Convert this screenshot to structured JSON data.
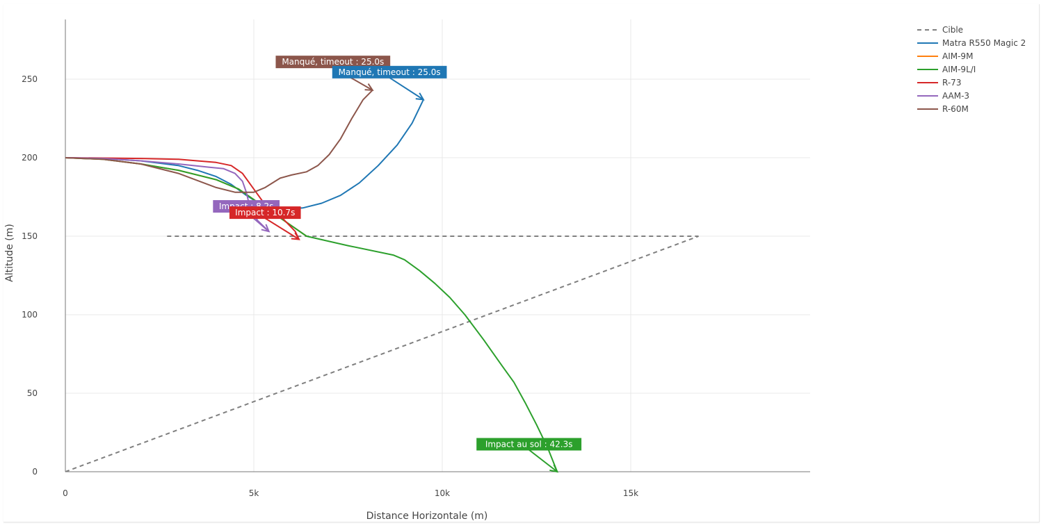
{
  "chart_data": {
    "type": "line",
    "xlabel": "Distance Horizontale (m)",
    "ylabel": "Altitude (m)",
    "xlim": [
      -1500,
      20000
    ],
    "ylim": [
      -5,
      290
    ],
    "x_ticks": [
      {
        "value": 0,
        "label": "0"
      },
      {
        "value": 5000,
        "label": "5k"
      },
      {
        "value": 10000,
        "label": "10k"
      },
      {
        "value": 15000,
        "label": "15k"
      }
    ],
    "y_ticks": [
      {
        "value": 0,
        "label": "0"
      },
      {
        "value": 50,
        "label": "50"
      },
      {
        "value": 100,
        "label": "100"
      },
      {
        "value": 150,
        "label": "150"
      },
      {
        "value": 200,
        "label": "200"
      },
      {
        "value": 250,
        "label": "250"
      }
    ],
    "grid": true,
    "legend_position": "top-right",
    "series": [
      {
        "name": "Cible",
        "color": "#7f7f7f",
        "dash": true,
        "segments": [
          [
            [
              0,
              0
            ],
            [
              16800,
              150
            ]
          ],
          [
            [
              2700,
              150
            ],
            [
              16800,
              150
            ]
          ]
        ]
      },
      {
        "name": "Matra R550 Magic 2",
        "color": "#1f77b4",
        "dash": false,
        "x": [
          0,
          1000,
          2000,
          3000,
          3500,
          4000,
          4400,
          4800,
          5200,
          5700,
          6300,
          6800,
          7300,
          7800,
          8300,
          8800,
          9200,
          9500
        ],
        "y": [
          200,
          199.5,
          198,
          195,
          192,
          188,
          183,
          176,
          170,
          167,
          168,
          171,
          176,
          184,
          195,
          208,
          222,
          237
        ]
      },
      {
        "name": "AIM-9M",
        "color": "#ff7f0e",
        "dash": false,
        "x": [
          0,
          1000,
          2000,
          3000,
          4000,
          4600,
          5200,
          5800,
          6400
        ],
        "y": [
          200,
          199,
          196,
          192,
          186,
          180,
          170,
          160,
          150
        ]
      },
      {
        "name": "AIM-9L/I",
        "color": "#2ca02c",
        "dash": false,
        "x": [
          0,
          1000,
          2000,
          3000,
          4000,
          4600,
          5200,
          5800,
          6400,
          7500,
          8700,
          9000,
          9400,
          9800,
          10200,
          10600,
          11100,
          11600,
          11900,
          12200,
          12500,
          12800,
          13050
        ],
        "y": [
          200,
          199,
          196,
          192,
          186,
          180,
          170,
          160,
          150,
          144,
          138,
          135,
          128,
          120,
          111,
          100,
          84,
          67,
          57,
          44,
          30,
          15,
          0
        ]
      },
      {
        "name": "R-73",
        "color": "#d62728",
        "dash": false,
        "x": [
          0,
          1000,
          2000,
          3000,
          4000,
          4400,
          4700,
          5000,
          5300,
          5700,
          6100,
          6200
        ],
        "y": [
          200,
          199.8,
          199.5,
          199,
          197,
          195,
          190,
          180,
          170,
          163,
          153,
          148
        ]
      },
      {
        "name": "AAM-3",
        "color": "#9467bd",
        "dash": false,
        "x": [
          0,
          1000,
          2000,
          3000,
          3800,
          4200,
          4500,
          4700,
          4800,
          4900,
          5100,
          5400
        ],
        "y": [
          200,
          199.5,
          198,
          196,
          194,
          193,
          190,
          185,
          178,
          168,
          160,
          153
        ]
      },
      {
        "name": "R-60M",
        "color": "#8c564b",
        "dash": false,
        "x": [
          0,
          1000,
          2000,
          3000,
          4000,
          4500,
          5000,
          5300,
          5700,
          6000,
          6400,
          6700,
          7000,
          7300,
          7600,
          7900,
          8150
        ],
        "y": [
          200,
          199,
          196,
          190,
          181,
          178,
          178,
          181,
          187,
          189,
          191,
          195,
          202,
          212,
          225,
          237,
          243
        ]
      }
    ],
    "annotations": [
      {
        "text": "Manqué, timeout : 25.0s",
        "color": "#8c564b",
        "x": 8150,
        "y": 243,
        "label_x": 7100,
        "label_y": 261
      },
      {
        "text": "Manqué, timeout : 25.0s",
        "color": "#1f77b4",
        "x": 9500,
        "y": 237,
        "label_x": 8600,
        "label_y": 254.5
      },
      {
        "text": "Impact : 8.2s",
        "color": "#9467bd",
        "x": 5400,
        "y": 153,
        "label_x": 4800,
        "label_y": 169
      },
      {
        "text": "Impact : 10.7s",
        "color": "#d62728",
        "x": 6200,
        "y": 148,
        "label_x": 5300,
        "label_y": 165
      },
      {
        "text": "Impact au sol : 42.3s",
        "color": "#2ca02c",
        "x": 13050,
        "y": 0,
        "label_x": 12300,
        "label_y": 17.5
      }
    ]
  }
}
